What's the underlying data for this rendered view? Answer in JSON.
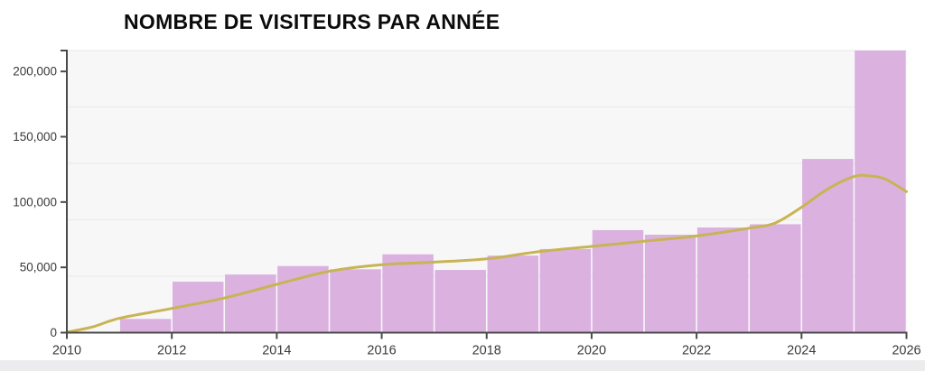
{
  "title": "NOMBRE DE VISITEURS PAR ANNÉE",
  "colors": {
    "bar": "#dbb1e0",
    "bar_gap": "#ffffff",
    "trend_line": "#c8b454",
    "axis": "#4a4a4a",
    "tick_label": "#3a3a3a",
    "grid": "#ebebee",
    "plot_bg": "#f7f7f8",
    "page_bg": "#ffffff",
    "title_color": "#0b0b0b",
    "bottom_strip": "#ececee"
  },
  "chart_data": {
    "type": "bar",
    "title": "NOMBRE DE VISITEURS PAR ANNÉE",
    "xlabel": "",
    "ylabel": "",
    "legend": "none",
    "grid": "on",
    "x_axis": {
      "min": 2010,
      "max": 2026,
      "tick_step": 2,
      "tick_labels": [
        "2010",
        "2012",
        "2014",
        "2016",
        "2018",
        "2020",
        "2022",
        "2024",
        "2026"
      ]
    },
    "y_axis": {
      "min": 0,
      "max": 216000,
      "tick_step": 50000,
      "tick_values": [
        0,
        50000,
        100000,
        150000,
        200000
      ],
      "tick_labels": [
        "0",
        "50,000",
        "100,000",
        "150,000",
        "200,000"
      ],
      "gridline_values": [
        43200,
        86400,
        129600,
        172800,
        216000
      ]
    },
    "ylim": [
      0,
      216000
    ],
    "bar_span_years": 1,
    "bars": [
      {
        "year": 2010,
        "value": 0
      },
      {
        "year": 2011,
        "value": 10500
      },
      {
        "year": 2012,
        "value": 39000
      },
      {
        "year": 2013,
        "value": 44500
      },
      {
        "year": 2014,
        "value": 51000
      },
      {
        "year": 2015,
        "value": 48500
      },
      {
        "year": 2016,
        "value": 60000
      },
      {
        "year": 2017,
        "value": 48000
      },
      {
        "year": 2018,
        "value": 59000
      },
      {
        "year": 2019,
        "value": 64000
      },
      {
        "year": 2020,
        "value": 78500
      },
      {
        "year": 2021,
        "value": 75000
      },
      {
        "year": 2022,
        "value": 80500
      },
      {
        "year": 2023,
        "value": 83000
      },
      {
        "year": 2024,
        "value": 133000
      },
      {
        "year": 2025,
        "value": 216000
      }
    ],
    "series": [
      {
        "name": "trend",
        "type": "line",
        "points": [
          [
            2010,
            0
          ],
          [
            2010.5,
            4500
          ],
          [
            2011,
            11000
          ],
          [
            2012,
            18500
          ],
          [
            2013,
            26500
          ],
          [
            2014,
            37000
          ],
          [
            2015,
            47000
          ],
          [
            2016,
            52000
          ],
          [
            2017,
            54000
          ],
          [
            2018,
            56500
          ],
          [
            2019,
            62000
          ],
          [
            2020,
            66000
          ],
          [
            2021,
            70000
          ],
          [
            2022,
            74000
          ],
          [
            2023,
            80000
          ],
          [
            2023.5,
            84000
          ],
          [
            2024,
            96000
          ],
          [
            2024.5,
            110000
          ],
          [
            2025,
            119500
          ],
          [
            2025.3,
            120000
          ],
          [
            2025.6,
            117500
          ],
          [
            2026,
            108000
          ]
        ]
      }
    ]
  }
}
